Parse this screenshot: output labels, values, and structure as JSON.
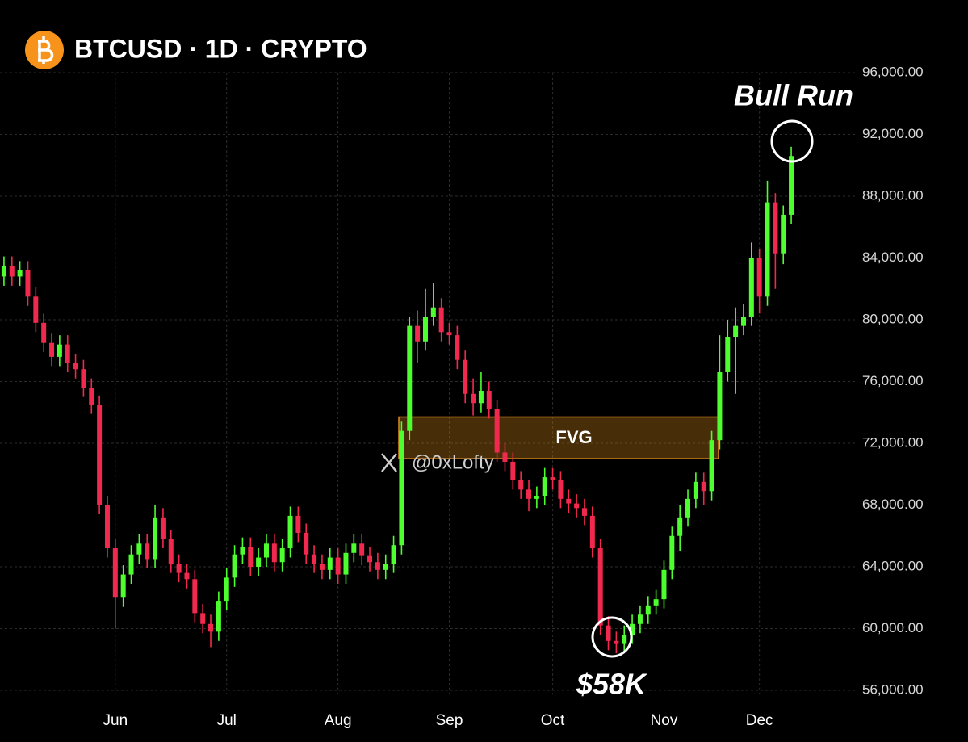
{
  "chart_data": {
    "type": "candlestick",
    "title": "BTCUSD · 1D · CRYPTO",
    "categories": [
      null,
      null,
      null,
      null,
      null,
      null,
      null,
      null,
      null,
      null,
      null,
      null,
      null,
      null,
      "Jun",
      null,
      null,
      null,
      null,
      null,
      null,
      null,
      null,
      null,
      null,
      null,
      null,
      null,
      "Jul",
      null,
      null,
      null,
      null,
      null,
      null,
      null,
      null,
      null,
      null,
      null,
      null,
      null,
      "Aug",
      null,
      null,
      null,
      null,
      null,
      null,
      null,
      null,
      null,
      null,
      null,
      null,
      null,
      "Sep",
      null,
      null,
      null,
      null,
      null,
      null,
      null,
      null,
      null,
      null,
      null,
      null,
      "Oct",
      null,
      null,
      null,
      null,
      null,
      null,
      null,
      null,
      null,
      null,
      null,
      null,
      null,
      "Nov",
      null,
      null,
      null,
      null,
      null,
      null,
      null,
      null,
      null,
      null,
      null,
      "Dec",
      null,
      null,
      null,
      null
    ],
    "open": [
      82800,
      83500,
      82800,
      83200,
      81500,
      79800,
      78500,
      77600,
      78400,
      77200,
      76800,
      75600,
      74500,
      68000,
      65200,
      62000,
      63500,
      64800,
      65500,
      64500,
      67200,
      65800,
      64200,
      63600,
      63200,
      61000,
      60300,
      59800,
      61800,
      63300,
      64800,
      65300,
      64000,
      64600,
      65500,
      64300,
      65200,
      67300,
      66200,
      64800,
      64200,
      63800,
      64600,
      63500,
      64900,
      65500,
      64700,
      64300,
      63800,
      64200,
      65400,
      72800,
      79600,
      78600,
      80200,
      80800,
      79200,
      79000,
      77400,
      75200,
      74600,
      75400,
      74200,
      71400,
      70800,
      69600,
      69000,
      68400,
      68600,
      69800,
      69600,
      68400,
      68100,
      67800,
      67300,
      65200,
      60200,
      59200,
      59000,
      59600,
      60300,
      60900,
      61500,
      61900,
      63800,
      66000,
      67200,
      68400,
      69500,
      68900,
      72200,
      76600,
      78900,
      79600,
      80200,
      84000,
      81500,
      87600,
      84300,
      86800
    ],
    "high": [
      84100,
      84100,
      83800,
      83800,
      82100,
      80400,
      79100,
      79000,
      79000,
      77800,
      77400,
      76200,
      75100,
      68600,
      65800,
      64100,
      65400,
      66100,
      66100,
      68000,
      67800,
      66400,
      64800,
      64200,
      63800,
      61600,
      60900,
      62400,
      63900,
      65400,
      65900,
      65900,
      65200,
      66100,
      66100,
      65800,
      67900,
      67900,
      66800,
      65400,
      64800,
      65200,
      65200,
      65500,
      66100,
      66100,
      65300,
      64900,
      64800,
      66000,
      73400,
      80200,
      80600,
      82000,
      82400,
      81400,
      79800,
      79600,
      78000,
      76200,
      76600,
      76000,
      74800,
      72000,
      71400,
      70200,
      69600,
      69200,
      70400,
      70400,
      70200,
      69000,
      68700,
      68400,
      67900,
      65800,
      60800,
      59800,
      60200,
      60900,
      61500,
      62100,
      62500,
      64400,
      66600,
      68000,
      69000,
      70100,
      70100,
      72800,
      79000,
      80000,
      80800,
      81000,
      85000,
      84600,
      89000,
      88200,
      87400,
      91200
    ],
    "low": [
      82200,
      82200,
      82200,
      80900,
      79200,
      77900,
      77000,
      77000,
      76600,
      76200,
      75000,
      73900,
      67400,
      64600,
      60000,
      61400,
      62900,
      64200,
      63900,
      63900,
      65200,
      63600,
      63000,
      62600,
      60400,
      59700,
      58800,
      59200,
      61200,
      62700,
      64200,
      63400,
      63400,
      64000,
      63700,
      63700,
      64600,
      65600,
      64200,
      63600,
      63200,
      63200,
      62900,
      62900,
      64300,
      64100,
      63700,
      63200,
      63200,
      63600,
      64800,
      72200,
      77200,
      78000,
      79600,
      78600,
      78400,
      76800,
      74600,
      73800,
      74000,
      73600,
      70800,
      70200,
      69000,
      68400,
      67600,
      67800,
      68000,
      69000,
      67800,
      67500,
      67200,
      66700,
      64600,
      59600,
      58600,
      58400,
      58400,
      59000,
      59700,
      60300,
      60900,
      61300,
      63200,
      65000,
      66600,
      67800,
      68000,
      68300,
      71600,
      76000,
      75200,
      79000,
      79600,
      80400,
      80900,
      82000,
      83600,
      86200
    ],
    "close": [
      83500,
      82800,
      83200,
      81500,
      79800,
      78500,
      77600,
      78400,
      77200,
      76800,
      75600,
      74500,
      68000,
      65200,
      62000,
      63500,
      64800,
      65500,
      64500,
      67200,
      65800,
      64200,
      63600,
      63200,
      61000,
      60300,
      59800,
      61800,
      63300,
      64800,
      65300,
      64000,
      64600,
      65500,
      64300,
      65200,
      67300,
      66200,
      64800,
      64200,
      63800,
      64600,
      63500,
      64900,
      65500,
      64700,
      64300,
      63800,
      64200,
      65400,
      72800,
      79600,
      78600,
      80200,
      80800,
      79200,
      79000,
      77400,
      75200,
      74600,
      75400,
      74200,
      71400,
      70800,
      69600,
      69000,
      68400,
      68600,
      69800,
      69600,
      68400,
      68100,
      67800,
      67300,
      65200,
      60200,
      59200,
      59000,
      59600,
      60300,
      60900,
      61500,
      61900,
      63800,
      66000,
      67200,
      68400,
      69500,
      68900,
      72200,
      76600,
      78900,
      79600,
      80200,
      84000,
      81500,
      87600,
      84300,
      86800,
      90600
    ],
    "up_color": "#4dff2e",
    "down_color": "#f2294e",
    "ylim": [
      56000,
      96000
    ],
    "yticks": [
      {
        "value": 56000,
        "label": "56,000.00"
      },
      {
        "value": 60000,
        "label": "60,000.00"
      },
      {
        "value": 64000,
        "label": "64,000.00"
      },
      {
        "value": 68000,
        "label": "68,000.00"
      },
      {
        "value": 72000,
        "label": "72,000.00"
      },
      {
        "value": 76000,
        "label": "76,000.00"
      },
      {
        "value": 80000,
        "label": "80,000.00"
      },
      {
        "value": 84000,
        "label": "84,000.00"
      },
      {
        "value": 88000,
        "label": "88,000.00"
      },
      {
        "value": 92000,
        "label": "92,000.00"
      },
      {
        "value": 96000,
        "label": "96,000.00"
      }
    ],
    "grid": true,
    "fvg": {
      "label": "FVG",
      "range": [
        71000,
        73700
      ]
    },
    "annotations": [
      "Bull Run",
      "$58K"
    ],
    "watermark": "@0xLofty"
  }
}
